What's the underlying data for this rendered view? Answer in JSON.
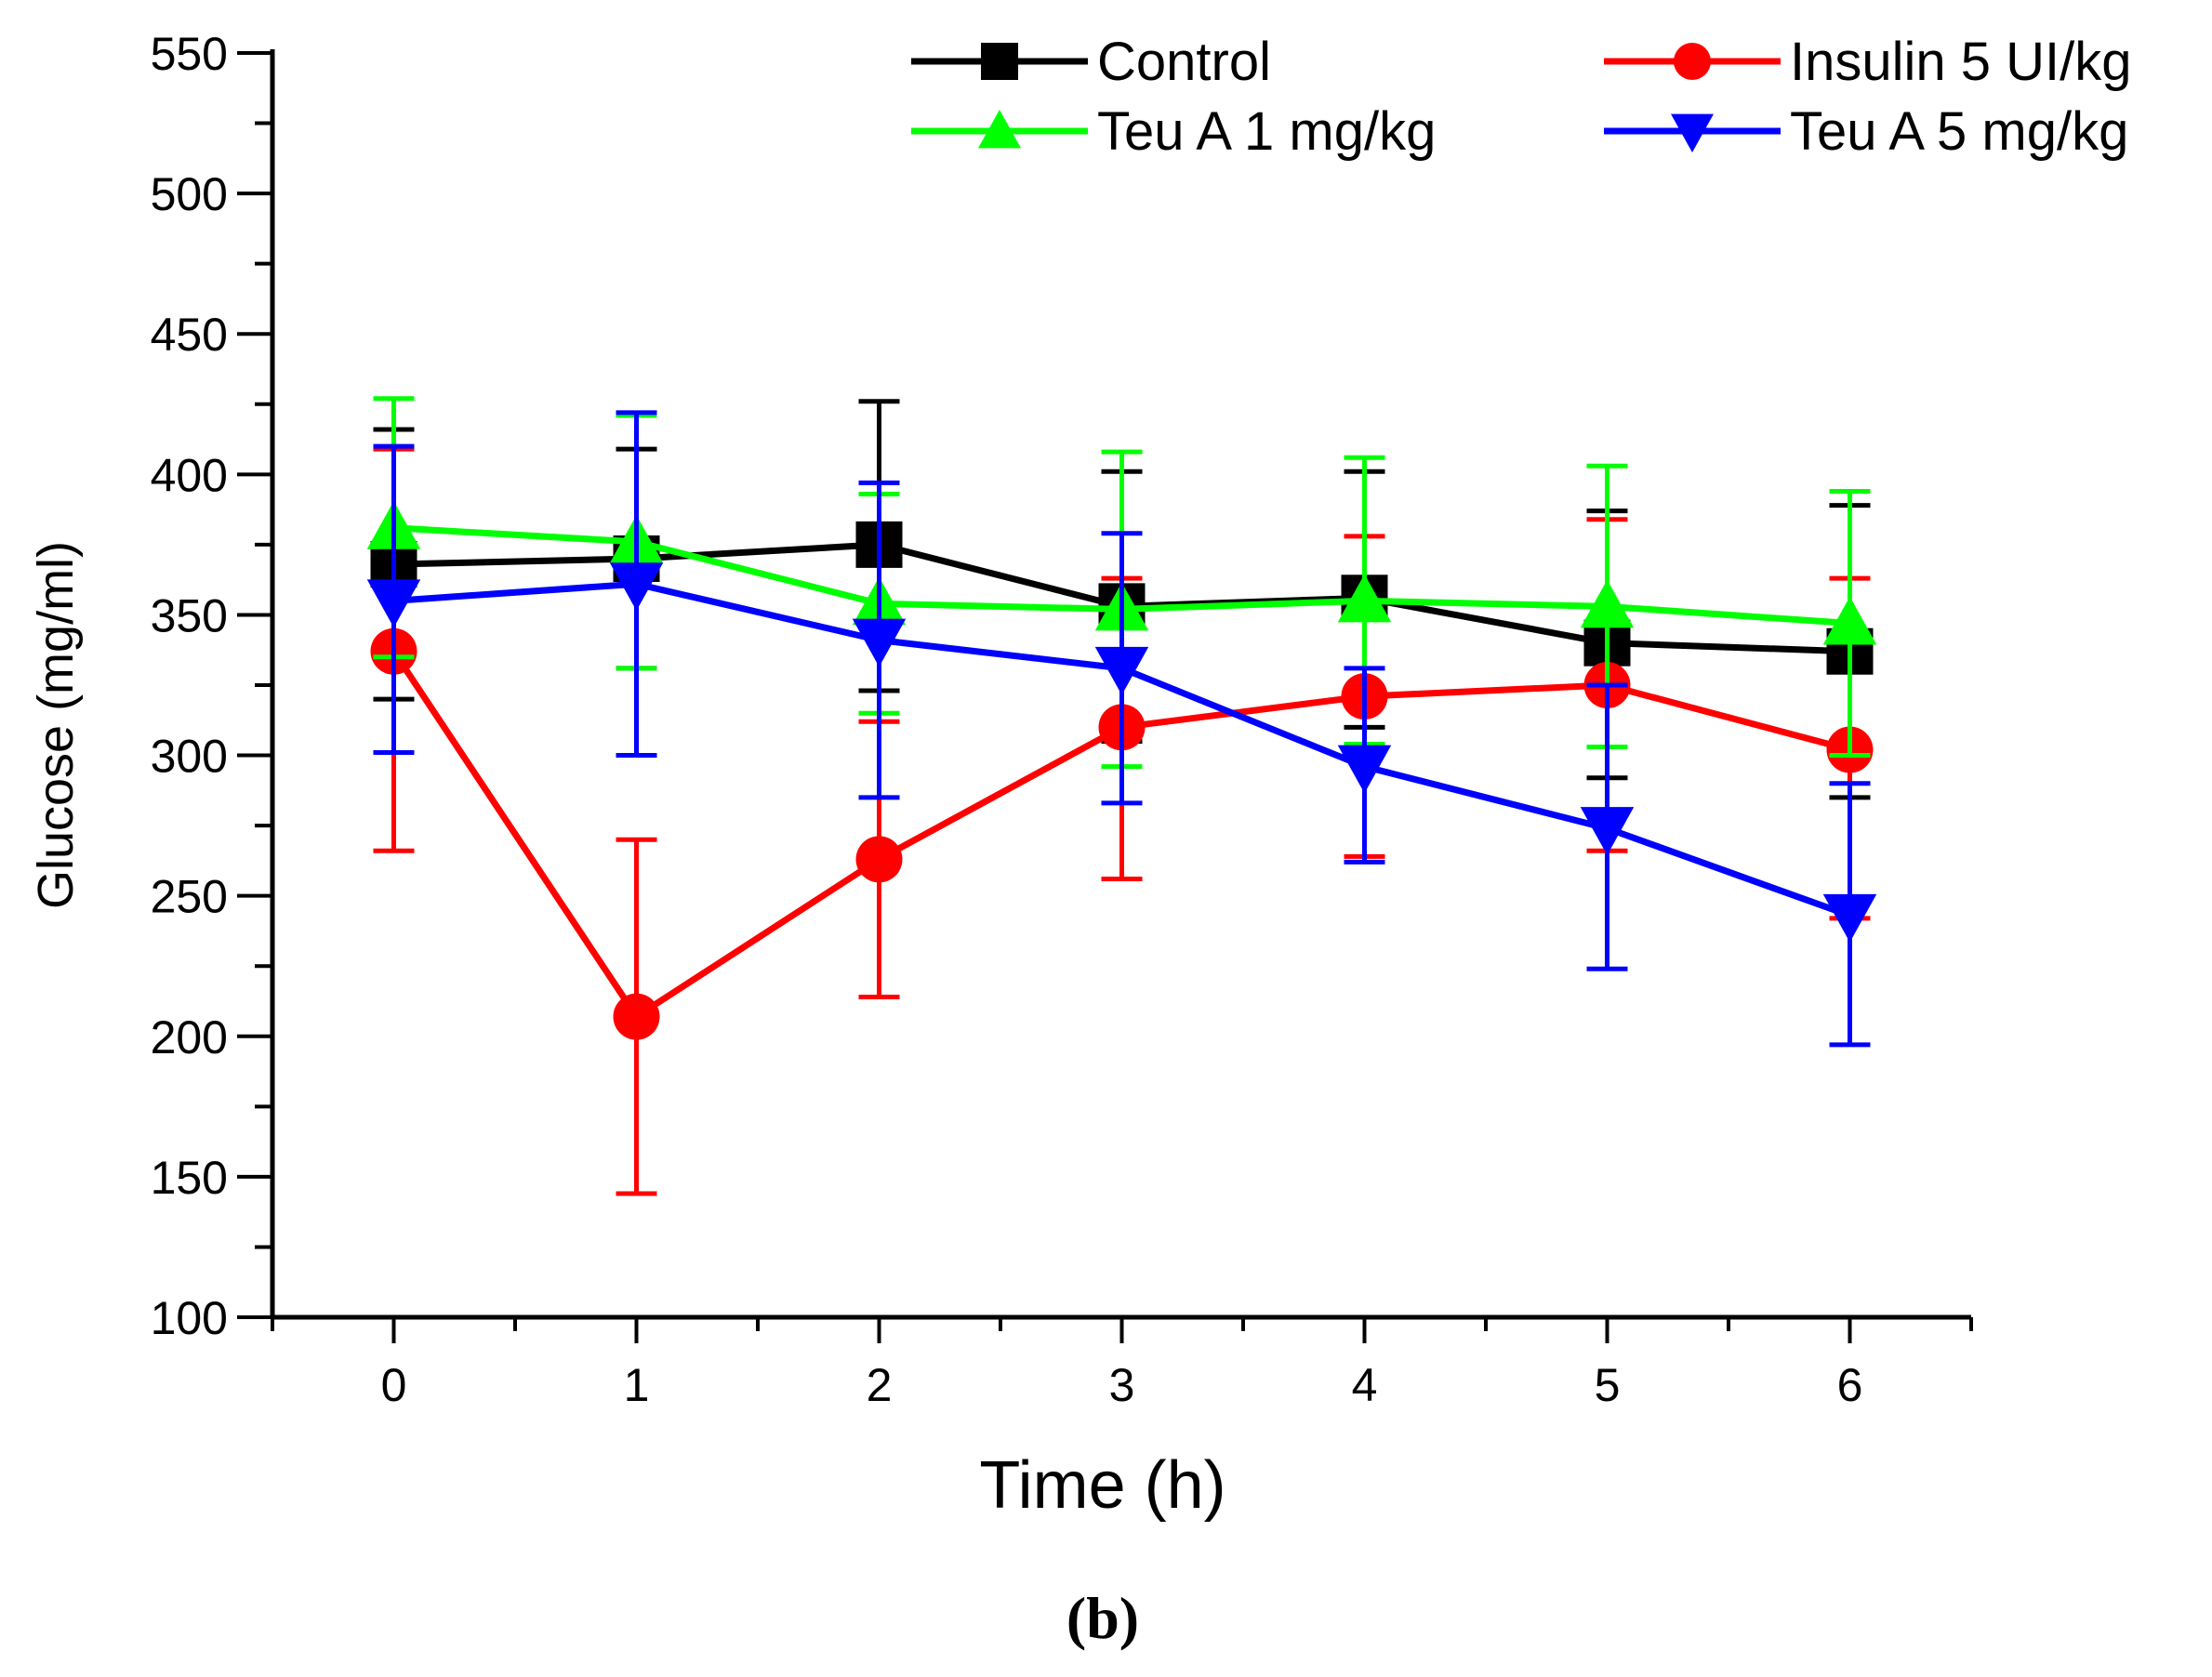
{
  "chart_data": {
    "type": "line",
    "x": [
      0,
      1,
      2,
      3,
      4,
      5,
      6
    ],
    "xlabel": "Time (h)",
    "ylabel": "Glucose (mg/ml)",
    "xlim": [
      -0.5,
      6.5
    ],
    "ylim": [
      100,
      550
    ],
    "x_ticks": [
      0,
      1,
      2,
      3,
      4,
      5,
      6
    ],
    "y_ticks": [
      100,
      150,
      200,
      250,
      300,
      350,
      400,
      450,
      500,
      550
    ],
    "grid": false,
    "legend_position": "top-right",
    "panel_label": "(b)",
    "series": [
      {
        "name": "Control",
        "color": "#000000",
        "marker": "square",
        "values": [
          368,
          370,
          375,
          353,
          356,
          340,
          337
        ],
        "err_upper": [
          416,
          409,
          426,
          401,
          401,
          387,
          389
        ],
        "err_lower": [
          320,
          331,
          323,
          305,
          310,
          292,
          285
        ]
      },
      {
        "name": "Insulin 5 UI/kg",
        "color": "#ff0000",
        "marker": "circle",
        "values": [
          337,
          207,
          263,
          310,
          321,
          325,
          302
        ],
        "err_upper": [
          409,
          270,
          312,
          363,
          378,
          384,
          363
        ],
        "err_lower": [
          266,
          144,
          214,
          256,
          264,
          266,
          242
        ]
      },
      {
        "name": "Teu A 1 mg/kg",
        "color": "#00ff00",
        "marker": "triangle-up",
        "values": [
          381,
          376,
          354,
          352,
          355,
          353,
          347
        ],
        "err_upper": [
          427,
          421,
          393,
          408,
          406,
          403,
          394
        ],
        "err_lower": [
          335,
          331,
          315,
          296,
          304,
          303,
          300
        ]
      },
      {
        "name": "Teu A 5 mg/kg",
        "color": "#0000ff",
        "marker": "triangle-down",
        "values": [
          355,
          361,
          341,
          331,
          296,
          274,
          243
        ],
        "err_upper": [
          410,
          422,
          397,
          379,
          331,
          325,
          290
        ],
        "err_lower": [
          301,
          300,
          285,
          283,
          262,
          224,
          197
        ]
      }
    ]
  }
}
